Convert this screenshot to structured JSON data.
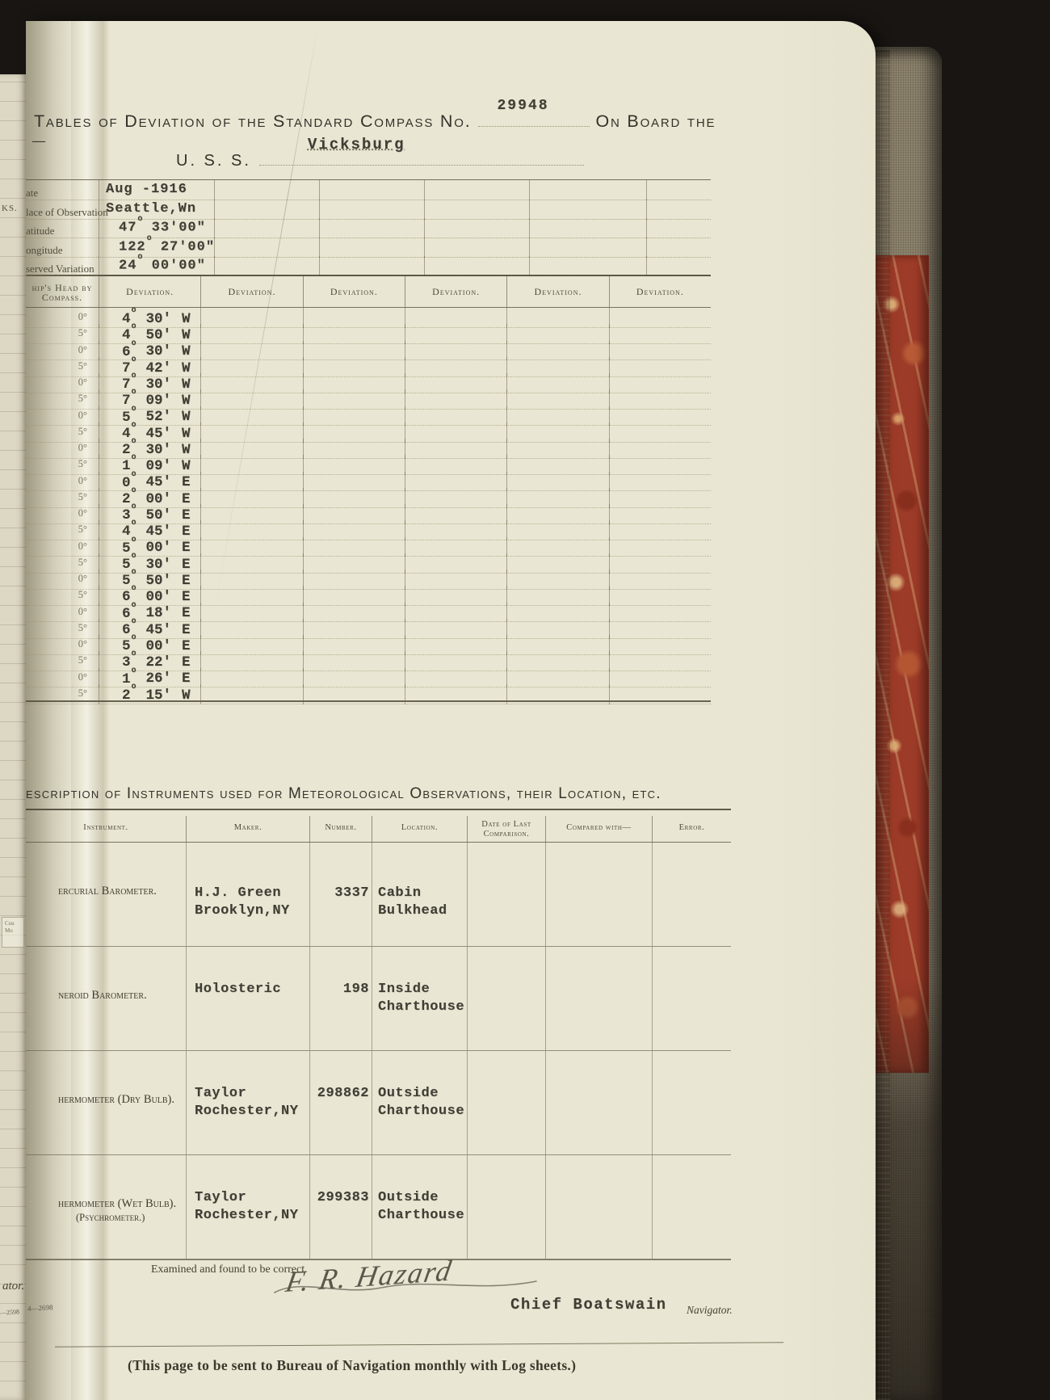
{
  "colors": {
    "backdrop": "#181512",
    "page": "#e9e6d3",
    "marble_red": "#9c3b28",
    "cover_canvas": "#867c66",
    "page_edges": "#c3aa7c",
    "ink_typed": "#403d34",
    "ink_printed": "#4b483a"
  },
  "title": {
    "line1": "Tables of Deviation of the Standard Compass No.",
    "compass_no": "29948",
    "line1_suffix": "On Board the",
    "uss": "U. S. S.",
    "ship": "Vicksburg"
  },
  "observations": {
    "rows": [
      {
        "label": "ate",
        "text": "Aug -1916"
      },
      {
        "label": "lace of Observation",
        "text": "Seattle,Wn"
      },
      {
        "label": "atitude",
        "deg": "47",
        "rest": "33'00\""
      },
      {
        "label": "ongitude",
        "deg": "122",
        "rest": "27'00\""
      },
      {
        "label": "served Variation",
        "deg": "24",
        "rest": "00'00\""
      }
    ]
  },
  "deviation_table": {
    "col1_header": "hip's Head by\nCompass.",
    "deviation_header": "Deviation.",
    "rows": [
      {
        "head": "0°",
        "d": "4",
        "m": "30",
        "dir": "W"
      },
      {
        "head": "5°",
        "d": "4",
        "m": "50",
        "dir": "W"
      },
      {
        "head": "0°",
        "d": "6",
        "m": "30",
        "dir": "W"
      },
      {
        "head": "5°",
        "d": "7",
        "m": "42",
        "dir": "W"
      },
      {
        "head": "0°",
        "d": "7",
        "m": "30",
        "dir": "W"
      },
      {
        "head": "5°",
        "d": "7",
        "m": "09",
        "dir": "W"
      },
      {
        "head": "0°",
        "d": "5",
        "m": "52",
        "dir": "W"
      },
      {
        "head": "5°",
        "d": "4",
        "m": "45",
        "dir": "W"
      },
      {
        "head": "0°",
        "d": "2",
        "m": "30",
        "dir": "W"
      },
      {
        "head": "5°",
        "d": "1",
        "m": "09",
        "dir": "W"
      },
      {
        "head": "0°",
        "d": "0",
        "m": "45",
        "dir": "E"
      },
      {
        "head": "5°",
        "d": "2",
        "m": "00",
        "dir": "E"
      },
      {
        "head": "0°",
        "d": "3",
        "m": "50",
        "dir": "E"
      },
      {
        "head": "5°",
        "d": "4",
        "m": "45",
        "dir": "E"
      },
      {
        "head": "0°",
        "d": "5",
        "m": "00",
        "dir": "E"
      },
      {
        "head": "5°",
        "d": "5",
        "m": "30",
        "dir": "E"
      },
      {
        "head": "0°",
        "d": "5",
        "m": "50",
        "dir": "E"
      },
      {
        "head": "5°",
        "d": "6",
        "m": "00",
        "dir": "E"
      },
      {
        "head": "0°",
        "d": "6",
        "m": "18",
        "dir": "E"
      },
      {
        "head": "5°",
        "d": "6",
        "m": "45",
        "dir": "E"
      },
      {
        "head": "0°",
        "d": "5",
        "m": "00",
        "dir": "E"
      },
      {
        "head": "5°",
        "d": "3",
        "m": "22",
        "dir": "E"
      },
      {
        "head": "0°",
        "d": "1",
        "m": "26",
        "dir": "E"
      },
      {
        "head": "5°",
        "d": "2",
        "m": "15",
        "dir": "W"
      }
    ]
  },
  "instruments": {
    "title": "escription of Instruments used for Meteorological Observations, their Location, etc.",
    "headers": [
      "Instrument.",
      "Maker.",
      "Number.",
      "Location.",
      "Date of Last\nComparison.",
      "Compared with—",
      "Error."
    ],
    "rows": [
      {
        "instrument": "ercurial Barometer.",
        "maker": [
          "H.J. Green",
          "Brooklyn,NY"
        ],
        "number": "3337",
        "location": [
          "Cabin",
          "Bulkhead"
        ]
      },
      {
        "instrument": "neroid Barometer.",
        "maker": [
          "Holosteric"
        ],
        "number": "198",
        "location": [
          "Inside",
          "Charthouse"
        ]
      },
      {
        "instrument": "hermometer (Dry Bulb).",
        "maker": [
          "Taylor",
          "Rochester,NY"
        ],
        "number": "298862",
        "location": [
          "Outside",
          "Charthouse"
        ]
      },
      {
        "instrument": "hermometer (Wet Bulb).",
        "instrument2": "(Psychrometer.)",
        "maker": [
          "Taylor",
          "Rochester,NY"
        ],
        "number": "299383",
        "location": [
          "Outside",
          "Charthouse"
        ]
      }
    ]
  },
  "signature": {
    "examined": "Examined and found to be correct.",
    "name": "F. R. Hazard",
    "title": "Chief Boatswain",
    "role": "Navigator."
  },
  "footer": "(This page to be sent to Bureau of Navigation monthly with Log sheets.)",
  "fragments": {
    "remarks": "KS.",
    "dash": "—",
    "navigator_tail": "ator.",
    "form_number": "4—2698",
    "form_number_left": "—2598",
    "cou": "Cou",
    "mo": "Mo"
  }
}
